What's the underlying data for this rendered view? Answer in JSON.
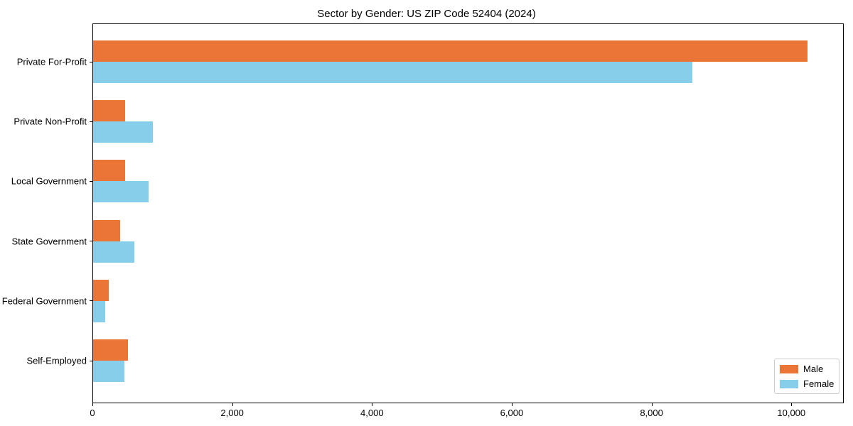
{
  "chart_data": {
    "type": "bar",
    "orientation": "horizontal",
    "title": "Sector by Gender: US ZIP Code 52404 (2024)",
    "categories": [
      "Private For-Profit",
      "Private Non-Profit",
      "Local Government",
      "State Government",
      "Federal Government",
      "Self-Employed"
    ],
    "series": [
      {
        "name": "Male",
        "color": "#eb7536",
        "values": [
          10220,
          460,
          455,
          385,
          225,
          500
        ]
      },
      {
        "name": "Female",
        "color": "#87ceeb",
        "values": [
          8570,
          850,
          795,
          585,
          170,
          450
        ]
      }
    ],
    "xlabel": "",
    "ylabel": "",
    "xlim": [
      0,
      10750
    ],
    "xticks": [
      0,
      2000,
      4000,
      6000,
      8000,
      10000
    ],
    "xtick_labels": [
      "0",
      "2,000",
      "4,000",
      "6,000",
      "8,000",
      "10,000"
    ],
    "grid": false,
    "legend_position": "lower right"
  }
}
